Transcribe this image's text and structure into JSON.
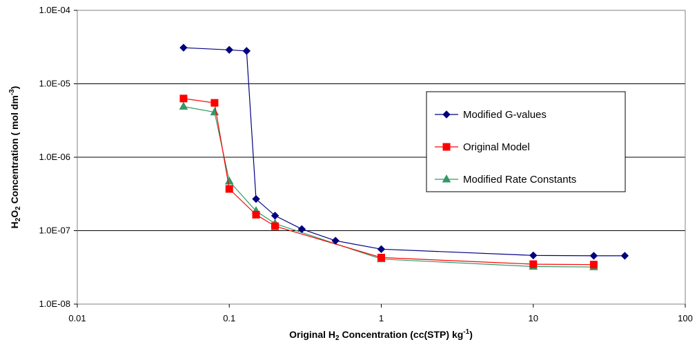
{
  "chart_data": {
    "type": "line",
    "title": "",
    "xlabel": {
      "pre": "Original H",
      "sub": "2",
      "post": " Concentration  (cc(STP) kg",
      "sup": "-1",
      "end": ")"
    },
    "ylabel": {
      "pre": "H",
      "sub1": "2",
      "mid": "O",
      "sub2": "2",
      "post": " Concentration ( mol dm",
      "sup": "-3",
      "end": ")"
    },
    "x_scale": "log",
    "y_scale": "log",
    "xlim": [
      0.01,
      100
    ],
    "ylim": [
      1e-08,
      0.0001
    ],
    "x_ticks": [
      {
        "value": 0.01,
        "label": "0.01"
      },
      {
        "value": 0.1,
        "label": "0.1"
      },
      {
        "value": 1,
        "label": "1"
      },
      {
        "value": 10,
        "label": "10"
      },
      {
        "value": 100,
        "label": "100"
      }
    ],
    "y_ticks": [
      {
        "value": 1e-08,
        "label": "1.0E-08"
      },
      {
        "value": 1e-07,
        "label": "1.0E-07"
      },
      {
        "value": 1e-06,
        "label": "1.0E-06"
      },
      {
        "value": 1e-05,
        "label": "1.0E-05"
      },
      {
        "value": 0.0001,
        "label": "1.0E-04"
      }
    ],
    "grid": "horizontal",
    "legend_position": "right",
    "series": [
      {
        "name": "Modified G-values",
        "color": "#000080",
        "marker": "diamond",
        "x": [
          0.05,
          0.1,
          0.13,
          0.15,
          0.2,
          0.3,
          0.5,
          1,
          10,
          25,
          40
        ],
        "y": [
          3.1e-05,
          2.9e-05,
          2.8e-05,
          2.7e-07,
          1.6e-07,
          1.05e-07,
          7.3e-08,
          5.6e-08,
          4.6e-08,
          4.55e-08,
          4.55e-08
        ]
      },
      {
        "name": "Original Model",
        "color": "#ff0000",
        "marker": "square",
        "x": [
          0.05,
          0.08,
          0.1,
          0.15,
          0.2,
          1,
          10,
          25
        ],
        "y": [
          6.3e-06,
          5.5e-06,
          3.7e-07,
          1.65e-07,
          1.15e-07,
          4.3e-08,
          3.5e-08,
          3.45e-08
        ]
      },
      {
        "name": "Modified Rate Constants",
        "color": "#339966",
        "marker": "triangle",
        "x": [
          0.05,
          0.08,
          0.1,
          0.15,
          0.2,
          1,
          10,
          25
        ],
        "y": [
          4.9e-06,
          4.1e-06,
          4.7e-07,
          1.85e-07,
          1.25e-07,
          4.1e-08,
          3.25e-08,
          3.2e-08
        ]
      }
    ]
  }
}
